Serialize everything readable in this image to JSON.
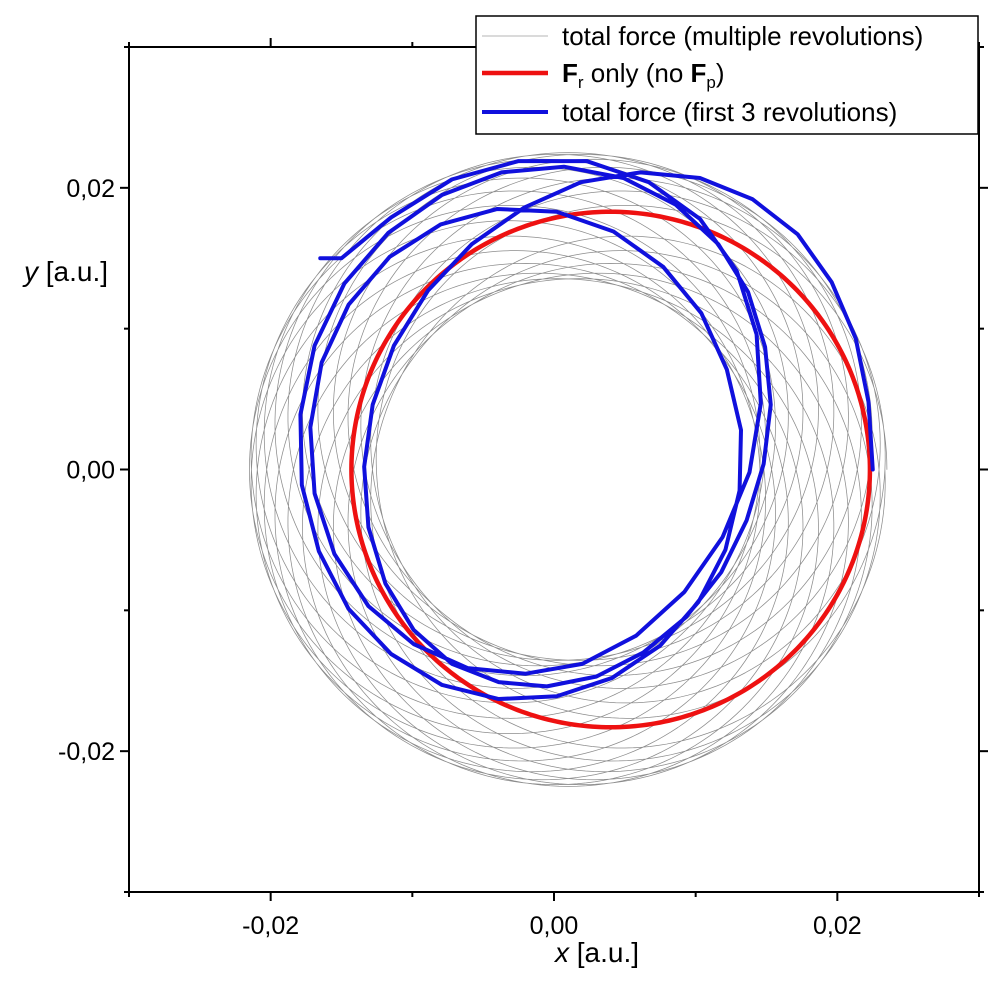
{
  "chart_data": {
    "type": "line",
    "title": "",
    "xlabel": {
      "var": "x",
      "unit": " [a.u.]"
    },
    "ylabel": {
      "var": "y",
      "unit": " [a.u.]"
    },
    "xlim": [
      -0.03,
      0.03
    ],
    "ylim": [
      -0.03,
      0.03
    ],
    "x_ticks": [
      {
        "value": -0.02,
        "label": "-0,02"
      },
      {
        "value": 0.0,
        "label": "0,00"
      },
      {
        "value": 0.02,
        "label": "0,02"
      }
    ],
    "y_ticks": [
      {
        "value": 0.02,
        "label": "0,02"
      },
      {
        "value": 0.0,
        "label": "0,00"
      },
      {
        "value": -0.02,
        "label": "-0,02"
      }
    ],
    "grid": false,
    "legend_position": "top-right",
    "legend": [
      {
        "key": "multi",
        "color": "#b4b4b4",
        "parts": [
          {
            "t": "total force (multiple revolutions)"
          }
        ]
      },
      {
        "key": "fr",
        "color": "#ee1111",
        "parts": [
          {
            "t": "F",
            "b": true
          },
          {
            "t": "r",
            "sub": true
          },
          {
            "t": " only (no "
          },
          {
            "t": "F",
            "b": true
          },
          {
            "t": "p",
            "sub": true
          },
          {
            "t": ")"
          }
        ]
      },
      {
        "key": "first3",
        "color": "#1010dd",
        "parts": [
          {
            "t": "total force (first 3 revolutions)"
          }
        ]
      }
    ],
    "series": [
      {
        "key": "multi",
        "color": "#8c8c8c",
        "description": "precessing rosette between r≈0.0135 and r≈0.0225",
        "model": {
          "r_min": 0.0135,
          "r_max": 0.0225,
          "radial_freq": 0.96,
          "revolutions": 24,
          "x_offset": 0.001
        }
      },
      {
        "key": "fr",
        "color": "#ee1111",
        "description": "circular orbit",
        "model": {
          "center": [
            0.004,
            0.0
          ],
          "radius": 0.0183
        }
      },
      {
        "key": "first3",
        "color": "#1010dd",
        "description": "first 3 revolutions, starting at (0.0225, 0.0) and ending at (-0.0165, 0.0150)",
        "points": [
          [
            0.0225,
            0.0
          ],
          [
            0.0222,
            0.0048
          ],
          [
            0.0213,
            0.0093
          ],
          [
            0.0196,
            0.0133
          ],
          [
            0.0172,
            0.0167
          ],
          [
            0.014,
            0.0192
          ],
          [
            0.0103,
            0.0207
          ],
          [
            0.0061,
            0.0211
          ],
          [
            0.0019,
            0.0204
          ],
          [
            -0.0021,
            0.0186
          ],
          [
            -0.0058,
            0.016
          ],
          [
            -0.0089,
            0.0127
          ],
          [
            -0.0113,
            0.0088
          ],
          [
            -0.0128,
            0.0046
          ],
          [
            -0.0134,
            0.0002
          ],
          [
            -0.0131,
            -0.0041
          ],
          [
            -0.0119,
            -0.0081
          ],
          [
            -0.0099,
            -0.0114
          ],
          [
            -0.0072,
            -0.0138
          ],
          [
            -0.0039,
            -0.0151
          ],
          [
            -0.0005,
            -0.0154
          ],
          [
            0.003,
            -0.0147
          ],
          [
            0.0063,
            -0.013
          ],
          [
            0.0093,
            -0.0105
          ],
          [
            0.0118,
            -0.0073
          ],
          [
            0.0136,
            -0.0036
          ],
          [
            0.0148,
            0.0004
          ],
          [
            0.0153,
            0.0046
          ],
          [
            0.0149,
            0.0087
          ],
          [
            0.0137,
            0.0126
          ],
          [
            0.0116,
            0.016
          ],
          [
            0.0086,
            0.0188
          ],
          [
            0.0049,
            0.0207
          ],
          [
            0.0007,
            0.0215
          ],
          [
            -0.0037,
            0.0211
          ],
          [
            -0.0079,
            0.0195
          ],
          [
            -0.0117,
            0.0168
          ],
          [
            -0.0148,
            0.0132
          ],
          [
            -0.0169,
            0.0088
          ],
          [
            -0.0179,
            0.0039
          ],
          [
            -0.0178,
            -0.0011
          ],
          [
            -0.0166,
            -0.0058
          ],
          [
            -0.0145,
            -0.0099
          ],
          [
            -0.0115,
            -0.0131
          ],
          [
            -0.0079,
            -0.0153
          ],
          [
            -0.0039,
            -0.0163
          ],
          [
            0.0002,
            -0.0161
          ],
          [
            0.0041,
            -0.0148
          ],
          [
            0.0075,
            -0.0125
          ],
          [
            0.0102,
            -0.0094
          ],
          [
            0.0121,
            -0.0057
          ],
          [
            0.0131,
            -0.0015
          ],
          [
            0.0132,
            0.0028
          ],
          [
            0.0122,
            0.0071
          ],
          [
            0.0104,
            0.0111
          ],
          [
            0.0077,
            0.0144
          ],
          [
            0.0042,
            0.0169
          ],
          [
            0.0002,
            0.0183
          ],
          [
            -0.004,
            0.0185
          ],
          [
            -0.008,
            0.0174
          ],
          [
            -0.0116,
            0.0151
          ],
          [
            -0.0145,
            0.0117
          ],
          [
            -0.0164,
            0.0076
          ],
          [
            -0.0172,
            0.003
          ],
          [
            -0.0169,
            -0.0017
          ],
          [
            -0.0155,
            -0.006
          ],
          [
            -0.0131,
            -0.0097
          ],
          [
            -0.0099,
            -0.0124
          ],
          [
            -0.0061,
            -0.0141
          ],
          [
            -0.002,
            -0.0145
          ],
          [
            0.002,
            -0.0138
          ],
          [
            0.0058,
            -0.0118
          ],
          [
            0.0092,
            -0.0087
          ],
          [
            0.0119,
            -0.0048
          ],
          [
            0.0138,
            -0.0002
          ],
          [
            0.0146,
            0.0047
          ],
          [
            0.0143,
            0.0096
          ],
          [
            0.0129,
            0.0141
          ],
          [
            0.0103,
            0.0178
          ],
          [
            0.0067,
            0.0204
          ],
          [
            0.0023,
            0.0219
          ],
          [
            -0.0025,
            0.0219
          ],
          [
            -0.0072,
            0.0206
          ],
          [
            -0.0115,
            0.0179
          ],
          [
            -0.015,
            0.015
          ],
          [
            -0.0165,
            0.015
          ]
        ]
      }
    ]
  }
}
